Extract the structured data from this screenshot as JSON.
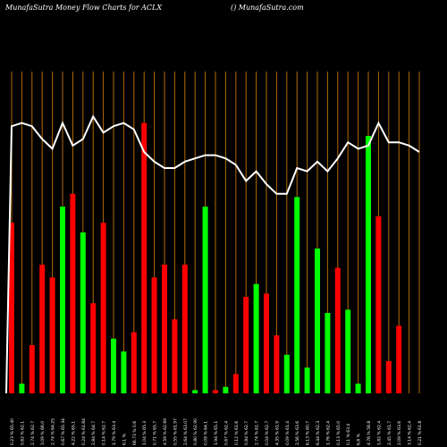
{
  "header": {
    "title_left": "MunafaSutra  Money Flow  Charts for ACLX",
    "title_right": "() MunafaSutra.com"
  },
  "chart_data": {
    "type": "bar",
    "title": "MunafaSutra  Money Flow  Charts for ACLX",
    "ylim": [
      0,
      100
    ],
    "up_color": "#00ff00",
    "down_color": "#ff0000",
    "grid_color": "#b36b00",
    "line_color": "#ffffff",
    "categories": [
      "Fri 18 Jul",
      "Thu 17 Jul",
      "Wed 16 Jul",
      "Tue 15 Jul",
      "Mon 14 Jul",
      "Fri 11 Jul",
      "Thu 10 Jul",
      "Wed 09 Jul",
      "Tue 08 Jul",
      "Mon 07 Jul",
      "Thu 03 Jul",
      "Wed 02 Jul",
      "Tue 01 Jul",
      "Mon 30 Jun",
      "Fri 27 Jun",
      "Thu 26 Jun",
      "Wed 25 Jun",
      "Tue 24 Jun",
      "Mon 23 Jun",
      "Fri 20 Jun",
      "Wed 18 Jun",
      "Tue 17 Jun",
      "Mon 16 Jun",
      "Fri 13 Jun",
      "Thu 12 Jun",
      "Wed 11 Jun",
      "Tue 10 Jun",
      "Mon 09 Jun",
      "Fri 06 Jun",
      "Thu 05 Jun",
      "Wed 04 Jun",
      "Tue 03 Jun",
      "Mon 02 Jun",
      "Fri 30 May",
      "Thu 29 May",
      "Wed 28 May",
      "Tue 27 May",
      "Fri 23 May",
      "Thu 22 May",
      "Wed 21 May",
      "Tue 20 May"
    ],
    "x_tick_labels": [
      "0.23 % 65.40",
      "5.62 % 62.1",
      "2.74 % 62.7",
      "3.09 % 66.0",
      "2.74 % 64.25",
      "0.67 % 65.34",
      "4.22 % 65.1",
      "0.24 % 61.84",
      "2.84 % 64.7",
      "0.14 % 62.7",
      "1.79 % 63.4",
      "6.1 %",
      "66.73 % 0.6",
      "1.04 % 65.3",
      "0.71 % 65.7",
      "4.59 % 62.69",
      "0.55 % 61.97",
      "2.64 % 63.07",
      "0.80 % 62.90",
      "0.09 % 64.1",
      "1.94 % 65.1",
      "0.67 % 62.4",
      "0.12 % 61.6",
      "0.84 % 62.7",
      "2.74 % 61.7",
      "0.04 % 62.7",
      "4.35 % 61.9",
      "0.09 % 61.4",
      "2.56 % 63.6",
      "6.13 % 60.7",
      "6.44 % 62.3",
      "1.76 % 62.4",
      "0.13 % 65.0",
      "0.1 % 63.4",
      "6.8 %",
      "4.76 % 58.8",
      "1.82 % 62.4",
      "2.45 % 61.7",
      "2.09 % 63.6",
      "3.14 % 62.4",
      "0.21 % 61.8"
    ],
    "series": [
      {
        "values": [
          53,
          3,
          15,
          40,
          36,
          58,
          62,
          50,
          28,
          53,
          17,
          13,
          19,
          84,
          36,
          40,
          23,
          40,
          1,
          58,
          1,
          2,
          6,
          30,
          34,
          31,
          18,
          12,
          61,
          8,
          45,
          25,
          39,
          26,
          3,
          80,
          55,
          10,
          21,
          0,
          0
        ],
        "direction": [
          "down",
          "up",
          "down",
          "down",
          "down",
          "up",
          "down",
          "up",
          "down",
          "down",
          "up",
          "up",
          "down",
          "down",
          "down",
          "down",
          "down",
          "down",
          "up",
          "up",
          "down",
          "up",
          "down",
          "down",
          "up",
          "down",
          "down",
          "up",
          "up",
          "up",
          "up",
          "up",
          "down",
          "up",
          "up",
          "up",
          "down",
          "down",
          "down",
          "down",
          "down"
        ]
      },
      {
        "values": [
          83,
          84,
          83,
          79,
          76,
          84,
          77,
          79,
          86,
          81,
          83,
          84,
          82,
          75,
          72,
          70,
          70,
          72,
          73,
          74,
          74,
          73,
          71,
          66,
          69,
          65,
          62,
          62,
          70,
          69,
          72,
          69,
          73,
          78,
          76,
          77,
          84,
          78,
          78,
          77,
          75
        ]
      }
    ]
  }
}
